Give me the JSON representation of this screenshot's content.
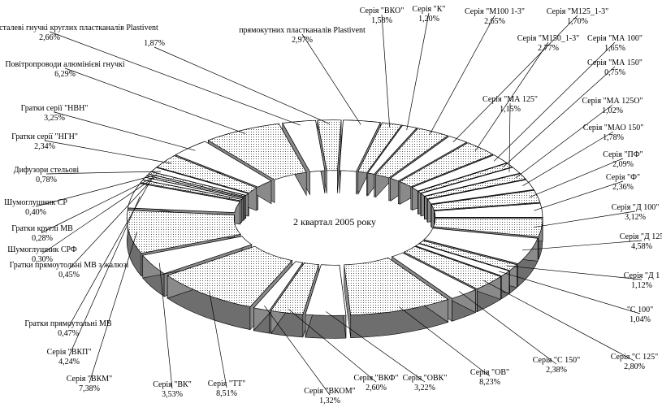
{
  "chart_data": {
    "type": "pie",
    "title": "2 квартал 2005 року",
    "slices": [
      {
        "label": "прямокутних пластканалів Plastivent",
        "value": 2.97,
        "value_label": "2,97%"
      },
      {
        "label": "Серія \"ВКО\"",
        "value": 1.58,
        "value_label": "1,58%"
      },
      {
        "label": "Серія \"К\"",
        "value": 1.2,
        "value_label": "1,20%"
      },
      {
        "label": "Серія \"М100 1-3\"",
        "value": 2.65,
        "value_label": "2,65%"
      },
      {
        "label": "Серія \"М125_1-3\"",
        "value": 1.7,
        "value_label": "1,70%"
      },
      {
        "label": "Серія \"М150_1-3\"",
        "value": 2.77,
        "value_label": "2,77%"
      },
      {
        "label": "Серія \"МА 100\"",
        "value": 1.65,
        "value_label": "1,65%"
      },
      {
        "label": "Серія \"МА 150\"",
        "value": 0.75,
        "value_label": "0,75%"
      },
      {
        "label": "Серія \"МА 125\"",
        "value": 1.15,
        "value_label": "1,15%"
      },
      {
        "label": "Серія \"МА 125О\"",
        "value": 1.02,
        "value_label": "1,02%"
      },
      {
        "label": "Серія \"МАО 150\"",
        "value": 1.78,
        "value_label": "1,78%"
      },
      {
        "label": "Серія \"ПФ\"",
        "value": 2.09,
        "value_label": "2,09%"
      },
      {
        "label": "Серія \"Ф\"",
        "value": 2.36,
        "value_label": "2,36%"
      },
      {
        "label": "Серія \"Д 100\"",
        "value": 3.12,
        "value_label": "3,12%"
      },
      {
        "label": "Серія \"Д 125",
        "value": 4.58,
        "value_label": "4,58%"
      },
      {
        "label": "Серія \"Д 1",
        "value": 1.12,
        "value_label": "1,12%"
      },
      {
        "label": "\"С 100\"",
        "value": 1.04,
        "value_label": "1,04%"
      },
      {
        "label": "Серія \"С 125\"",
        "value": 2.8,
        "value_label": "2,80%"
      },
      {
        "label": "Серія \"С 150\"",
        "value": 2.38,
        "value_label": "2,38%"
      },
      {
        "label": "Серія \"ОВ\"",
        "value": 8.23,
        "value_label": "8,23%"
      },
      {
        "label": "Серія \"ОВК\"",
        "value": 3.22,
        "value_label": "3,22%"
      },
      {
        "label": "Серія \"ВКФ\"",
        "value": 2.6,
        "value_label": "2,60%"
      },
      {
        "label": "Серія \"ВКОМ\"",
        "value": 1.32,
        "value_label": "1,32%"
      },
      {
        "label": "Серія \"ТТ\"",
        "value": 8.51,
        "value_label": "8,51%"
      },
      {
        "label": "Серія \"ВК\"",
        "value": 3.53,
        "value_label": "3,53%"
      },
      {
        "label": "Серія \"ВКМ\"",
        "value": 7.38,
        "value_label": "7,38%"
      },
      {
        "label": "Серія \"ВКП\"",
        "value": 4.24,
        "value_label": "4,24%"
      },
      {
        "label": "Гратки прямоутольні МВ",
        "value": 0.47,
        "value_label": "0,47%"
      },
      {
        "label": "Гратки прямоутольні МВ з жалюзі",
        "value": 0.45,
        "value_label": "0,45%"
      },
      {
        "label": "Шумоглушник СРФ",
        "value": 0.3,
        "value_label": "0,30%"
      },
      {
        "label": "Гратки круглі МВ",
        "value": 0.28,
        "value_label": "0,28%"
      },
      {
        "label": "Шумоглушник СР",
        "value": 0.4,
        "value_label": "0,40%"
      },
      {
        "label": "Дифузори стельові",
        "value": 0.78,
        "value_label": "0,78%"
      },
      {
        "label": "Гратки серії \"НГН\"",
        "value": 2.34,
        "value_label": "2,34%"
      },
      {
        "label": "Гратки серії \"НВН\"",
        "value": 3.25,
        "value_label": "3,25%"
      },
      {
        "label": "Повітропроводи алюмінієві гнучкі",
        "value": 6.29,
        "value_label": "6,29%"
      },
      {
        "label": "Повітропроводи сталеві гнучкі круглих пластканалів Plastivent",
        "value": 2.66,
        "value_label": "2,66%"
      },
      {
        "label": "",
        "value": 1.87,
        "value_label": "1,87%"
      }
    ],
    "style": "3d-exploded-pie",
    "fill_patterns": [
      "white",
      "dotted"
    ],
    "legend": "none"
  }
}
